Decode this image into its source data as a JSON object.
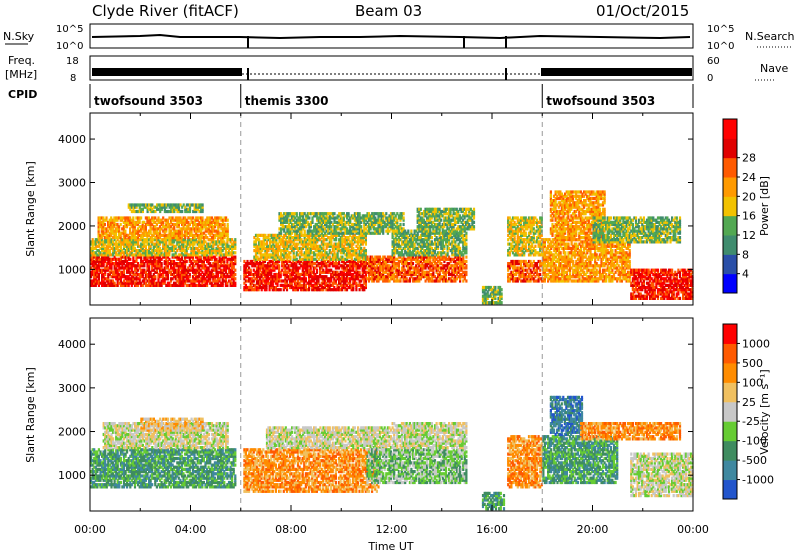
{
  "header": {
    "station": "Clyde River (fitACF)",
    "beam": "Beam 03",
    "date": "01/Oct/2015"
  },
  "top_panels": {
    "nsky_label": "N.Sky",
    "nsearch_label": "N.Search",
    "nsky_ticks": [
      "10^5",
      "10^0"
    ],
    "nsearch_ticks": [
      "10^5",
      "10^0"
    ],
    "freq_label_1": "Freq.",
    "freq_label_2": "[MHz]",
    "freq_ticks": [
      "18",
      "8"
    ],
    "nave_label": "Nave",
    "nave_ticks": [
      "60",
      "0"
    ],
    "cpid_label": "CPID",
    "cpid_segments": [
      {
        "name": "twofsound 3503",
        "start_hour": 0,
        "end_hour": 6
      },
      {
        "name": "themis 3300",
        "start_hour": 6,
        "end_hour": 18
      },
      {
        "name": "twofsound 3503",
        "start_hour": 18,
        "end_hour": 24
      }
    ]
  },
  "colors": {
    "power": [
      "#0000ff",
      "#2a4fa8",
      "#3f8c6e",
      "#52a852",
      "#f2c200",
      "#ff9a00",
      "#ff5a00",
      "#e00000",
      "#ff0000"
    ],
    "velocity": [
      "#2255cc",
      "#3f88a0",
      "#3f8c60",
      "#66cc33",
      "#c8c8c8",
      "#f0c060",
      "#ff8c00",
      "#ff5a00",
      "#ff0000"
    ]
  },
  "chart_data": [
    {
      "type": "heatmap",
      "panel": "power",
      "ylabel": "Slant Range [km]",
      "xlabel": "Time UT",
      "x_ticks": [
        "00:00",
        "04:00",
        "08:00",
        "12:00",
        "16:00",
        "20:00",
        "00:00"
      ],
      "y_ticks": [
        "1000",
        "2000",
        "3000",
        "4000"
      ],
      "xlim_hours": [
        0,
        24
      ],
      "ylim_km": [
        180,
        4600
      ],
      "colorbar_label": "Power [dB]",
      "colorbar_ticks": [
        "4",
        "8",
        "12",
        "16",
        "20",
        "24",
        "28"
      ],
      "mode_change_hours": [
        6,
        18
      ],
      "regions": [
        {
          "t0": 0.0,
          "t1": 5.8,
          "r0": 600,
          "r1": 1300,
          "level": 7
        },
        {
          "t0": 0.0,
          "t1": 5.8,
          "r0": 1300,
          "r1": 1700,
          "level": 4
        },
        {
          "t0": 0.3,
          "t1": 5.5,
          "r0": 1700,
          "r1": 2200,
          "level": 5
        },
        {
          "t0": 1.5,
          "t1": 4.5,
          "r0": 2300,
          "r1": 2500,
          "level": 3
        },
        {
          "t0": 6.1,
          "t1": 11.0,
          "r0": 500,
          "r1": 1200,
          "level": 7
        },
        {
          "t0": 6.5,
          "t1": 11.0,
          "r0": 1200,
          "r1": 1800,
          "level": 4
        },
        {
          "t0": 7.5,
          "t1": 12.5,
          "r0": 1800,
          "r1": 2300,
          "level": 3
        },
        {
          "t0": 11.0,
          "t1": 15.0,
          "r0": 700,
          "r1": 1300,
          "level": 6
        },
        {
          "t0": 12.0,
          "t1": 15.0,
          "r0": 1300,
          "r1": 1900,
          "level": 3
        },
        {
          "t0": 13.0,
          "t1": 15.3,
          "r0": 1900,
          "r1": 2400,
          "level": 3
        },
        {
          "t0": 15.6,
          "t1": 16.4,
          "r0": 200,
          "r1": 600,
          "level": 3
        },
        {
          "t0": 16.6,
          "t1": 18.0,
          "r0": 700,
          "r1": 1200,
          "level": 6
        },
        {
          "t0": 16.6,
          "t1": 18.0,
          "r0": 1300,
          "r1": 2200,
          "level": 4
        },
        {
          "t0": 18.0,
          "t1": 21.5,
          "r0": 700,
          "r1": 1700,
          "level": 5
        },
        {
          "t0": 18.3,
          "t1": 20.5,
          "r0": 1700,
          "r1": 2800,
          "level": 5
        },
        {
          "t0": 20.0,
          "t1": 23.5,
          "r0": 1600,
          "r1": 2200,
          "level": 3
        },
        {
          "t0": 21.5,
          "t1": 24.0,
          "r0": 300,
          "r1": 1000,
          "level": 7
        }
      ]
    },
    {
      "type": "heatmap",
      "panel": "velocity",
      "ylabel": "Slant Range [km]",
      "xlabel": "Time UT",
      "x_ticks": [
        "00:00",
        "04:00",
        "08:00",
        "12:00",
        "16:00",
        "20:00",
        "00:00"
      ],
      "y_ticks": [
        "1000",
        "2000",
        "3000",
        "4000"
      ],
      "xlim_hours": [
        0,
        24
      ],
      "ylim_km": [
        180,
        4600
      ],
      "colorbar_label": "Velocity  [m s⁻¹]",
      "colorbar_ticks": [
        "1000",
        "500",
        "100",
        "25",
        "-25",
        "-100",
        "-500",
        "-1000"
      ],
      "mode_change_hours": [
        6,
        18
      ],
      "regions": [
        {
          "t0": 0.0,
          "t1": 5.8,
          "r0": 700,
          "r1": 1600,
          "level": 2
        },
        {
          "t0": 0.5,
          "t1": 5.5,
          "r0": 1600,
          "r1": 2200,
          "level": 4
        },
        {
          "t0": 2.0,
          "t1": 4.5,
          "r0": 2000,
          "r1": 2300,
          "level": 5
        },
        {
          "t0": 6.1,
          "t1": 11.5,
          "r0": 600,
          "r1": 1600,
          "level": 6
        },
        {
          "t0": 7.0,
          "t1": 12.0,
          "r0": 1600,
          "r1": 2100,
          "level": 4
        },
        {
          "t0": 11.0,
          "t1": 15.0,
          "r0": 800,
          "r1": 1600,
          "level": 3
        },
        {
          "t0": 12.0,
          "t1": 15.0,
          "r0": 1600,
          "r1": 2200,
          "level": 4
        },
        {
          "t0": 15.6,
          "t1": 16.5,
          "r0": 200,
          "r1": 600,
          "level": 2
        },
        {
          "t0": 16.6,
          "t1": 18.0,
          "r0": 700,
          "r1": 1900,
          "level": 6
        },
        {
          "t0": 18.0,
          "t1": 21.0,
          "r0": 800,
          "r1": 1900,
          "level": 2
        },
        {
          "t0": 18.3,
          "t1": 19.6,
          "r0": 1900,
          "r1": 2800,
          "level": 1
        },
        {
          "t0": 19.5,
          "t1": 23.5,
          "r0": 1800,
          "r1": 2200,
          "level": 6
        },
        {
          "t0": 21.5,
          "t1": 24.0,
          "r0": 500,
          "r1": 1500,
          "level": 4
        }
      ]
    }
  ]
}
